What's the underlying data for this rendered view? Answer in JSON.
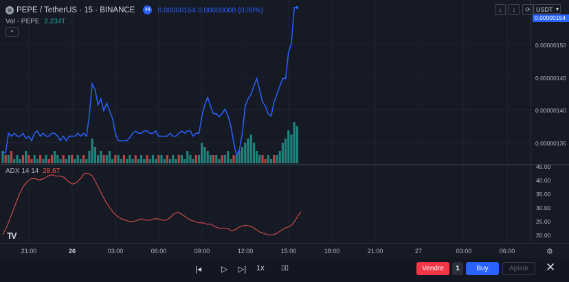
{
  "header": {
    "symbol": "PEPE / TetherUS · 15 · BINANCE",
    "flag_text": "44",
    "values": "0.00000154  0.00000000 (0.00%)",
    "currency": "USDT"
  },
  "volume_legend": {
    "label": "Vol · PEPE",
    "value": "2.234T"
  },
  "collapse_glyph": "^",
  "toolbar_top": {
    "download": "↓",
    "arrow": "↓",
    "refresh": "⟳",
    "expand": "⛶"
  },
  "price_axis": {
    "last": "0.00000154",
    "labels": [
      "0.00000150",
      "0.00000145",
      "0.00000140",
      "0.00000135"
    ]
  },
  "adx_legend": {
    "label": "ADX 14 14",
    "value": "28.67"
  },
  "adx_axis": [
    "45.00",
    "40.00",
    "35.00",
    "30.00",
    "25.00",
    "20.00"
  ],
  "time_axis": [
    {
      "label": "21:00",
      "bold": false
    },
    {
      "label": "26",
      "bold": true
    },
    {
      "label": "03:00",
      "bold": false
    },
    {
      "label": "06:00",
      "bold": false
    },
    {
      "label": "09:00",
      "bold": false
    },
    {
      "label": "12:00",
      "bold": false
    },
    {
      "label": "15:00",
      "bold": false
    },
    {
      "label": "18:00",
      "bold": false
    },
    {
      "label": "21:00",
      "bold": false
    },
    {
      "label": "27",
      "bold": false
    },
    {
      "label": "03:00",
      "bold": false
    },
    {
      "label": "06:00",
      "bold": false
    }
  ],
  "logo_text": "TV",
  "controls": {
    "jump": "|◂",
    "play": "▷",
    "step": "▷|",
    "speed": "1x",
    "stop": "▯▯",
    "sell": "Vendre",
    "qty": "1",
    "buy": "Buy",
    "flatten": "Aplatir",
    "close": "✕"
  },
  "colors": {
    "price_line": "#2962ff",
    "vol_up": "#26a69a",
    "vol_down": "#ef5350",
    "adx_line": "#ef5350"
  },
  "chart_data": [
    {
      "type": "line",
      "series": [
        {
          "values": [
            1.346,
            1.346,
            1.372,
            1.368,
            1.372,
            1.368,
            1.368,
            1.372,
            1.365,
            1.368,
            1.362,
            1.372,
            1.375,
            1.368,
            1.372,
            1.368,
            1.368,
            1.372,
            1.372,
            1.368,
            1.362,
            1.368,
            1.362,
            1.368,
            1.368,
            1.368,
            1.372,
            1.368,
            1.372,
            1.368,
            1.395,
            1.438,
            1.43,
            1.41,
            1.418,
            1.402,
            1.412,
            1.402,
            1.392,
            1.372,
            1.362,
            1.362,
            1.362,
            1.362,
            1.366,
            1.372,
            1.375,
            1.372,
            1.372,
            1.375,
            1.375,
            1.372,
            1.372,
            1.375,
            1.368,
            1.368,
            1.368,
            1.368,
            1.372,
            1.368,
            1.368,
            1.372,
            1.375,
            1.372,
            1.375,
            1.375,
            1.368,
            1.372,
            1.372,
            1.395,
            1.41,
            1.42,
            1.408,
            1.398,
            1.398,
            1.394,
            1.398,
            1.404,
            1.396,
            1.382,
            1.36,
            1.342,
            1.35,
            1.372,
            1.408,
            1.418,
            1.424,
            1.435,
            1.445,
            1.43,
            1.414,
            1.408,
            1.398,
            1.395,
            1.414,
            1.424,
            1.435,
            1.445,
            1.445,
            1.48,
            1.492,
            1.54,
            1.54
          ]
        }
      ],
      "ylim": [
        1.33,
        1.55
      ]
    },
    {
      "type": "bar",
      "series": [
        {
          "name": "up",
          "values": [
            3,
            1,
            2,
            0,
            1,
            2,
            1,
            0,
            3,
            1,
            0,
            2,
            1,
            0,
            1,
            2,
            0,
            1,
            3,
            2,
            1,
            0,
            1,
            2,
            0,
            1,
            2,
            1,
            0,
            1,
            3,
            6,
            4,
            2,
            3,
            1,
            2,
            3,
            1,
            0,
            2,
            1,
            0,
            1,
            2,
            1,
            0,
            1,
            2,
            1,
            0,
            1,
            2,
            1,
            0,
            2,
            1,
            0,
            1,
            2,
            1,
            0,
            2,
            1,
            3,
            2,
            1,
            0,
            2,
            5,
            4,
            3,
            2,
            1,
            2,
            1,
            0,
            2,
            3,
            1,
            0,
            2,
            3,
            4,
            5,
            6,
            7,
            5,
            3,
            2,
            1,
            0,
            2,
            1,
            0,
            2,
            3,
            5,
            6,
            8,
            7,
            10,
            9
          ]
        },
        {
          "name": "down",
          "values": [
            0,
            2,
            0,
            3,
            1,
            0,
            1,
            2,
            0,
            2,
            1,
            0,
            1,
            2,
            0,
            0,
            1,
            2,
            0,
            0,
            1,
            2,
            0,
            0,
            2,
            1,
            0,
            1,
            2,
            0,
            0,
            0,
            2,
            0,
            1,
            2,
            0,
            0,
            1,
            2,
            0,
            1,
            2,
            0,
            0,
            1,
            2,
            0,
            0,
            1,
            2,
            0,
            0,
            1,
            2,
            0,
            1,
            2,
            0,
            0,
            1,
            2,
            0,
            1,
            0,
            0,
            1,
            2,
            0,
            0,
            0,
            0,
            1,
            2,
            0,
            1,
            2,
            0,
            0,
            1,
            2,
            0,
            0,
            0,
            0,
            0,
            0,
            0,
            0,
            1,
            2,
            1,
            0,
            1,
            2,
            0,
            0,
            0,
            0,
            0,
            0,
            0,
            0
          ]
        }
      ]
    },
    {
      "type": "line",
      "series": [
        {
          "values": [
            20,
            23,
            27,
            31,
            35,
            38,
            40,
            41,
            41,
            40.5,
            41,
            42,
            42.5,
            42,
            42,
            41.5,
            40,
            39,
            39.5,
            41,
            43,
            43,
            42,
            39,
            36,
            33,
            30.5,
            28.5,
            27,
            26,
            25.5,
            25,
            25,
            25.5,
            26,
            25.5,
            25.5,
            26,
            26,
            25.5,
            25.5,
            26.5,
            28,
            28.5,
            27.5,
            26.5,
            25.5,
            25,
            24.5,
            24.5,
            24,
            24,
            23,
            22.5,
            22.5,
            22.5,
            21.5,
            22,
            23,
            23.5,
            23.5,
            23,
            22,
            21,
            20.5,
            20,
            20,
            20.5,
            21.5,
            22.5,
            23,
            24,
            26.5,
            28.67
          ]
        }
      ],
      "ylim": [
        17,
        46
      ]
    }
  ]
}
